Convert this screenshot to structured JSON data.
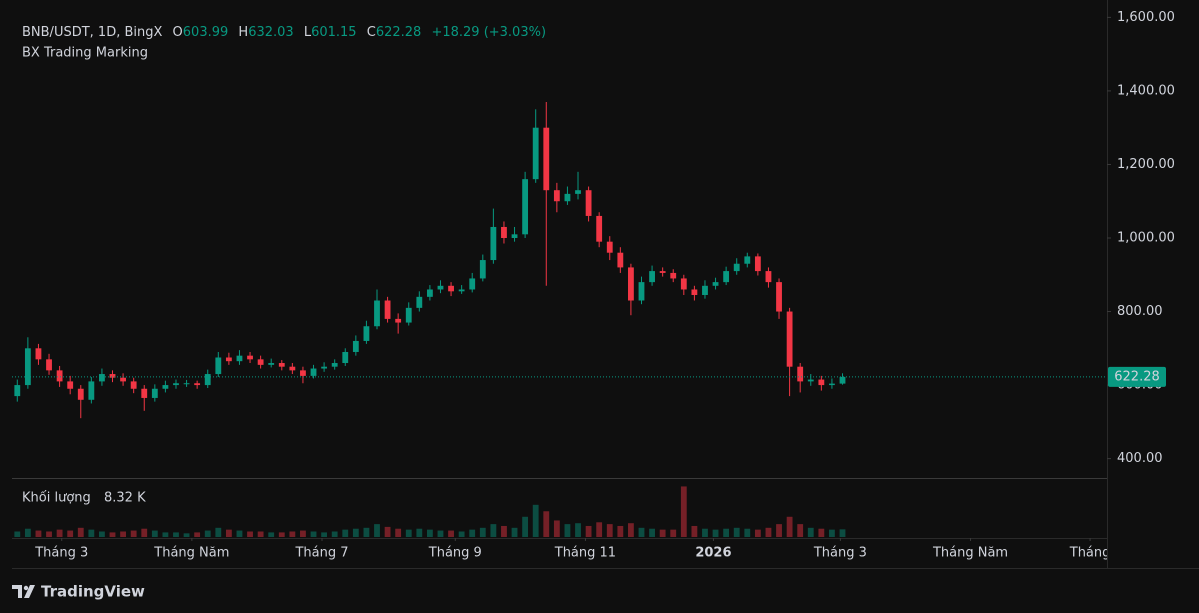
{
  "chart_data": {
    "type": "candlestick",
    "header": {
      "symbol": "BNB/USDT, 1D, BingX",
      "o": "O",
      "h": "H",
      "l": "L",
      "c": "C",
      "change": "+18.29 (+3.03%)",
      "indicator": "BX Trading Marking"
    },
    "volume_legend": {
      "label": "Khối lượng",
      "value": "8.32 K"
    },
    "brand": "TradingView",
    "up_color": "#089981",
    "down_color": "#f23645",
    "xlim": [
      -0.5,
      103
    ],
    "xticks": [
      {
        "value": 4.2,
        "label": "Tháng 3"
      },
      {
        "value": 16.5,
        "label": "Tháng Năm"
      },
      {
        "value": 28.8,
        "label": "Tháng 7"
      },
      {
        "value": 41.4,
        "label": "Tháng 9"
      },
      {
        "value": 53.7,
        "label": "Tháng 11"
      },
      {
        "value": 65.8,
        "label": "2026"
      },
      {
        "value": 77.8,
        "label": "Tháng 3"
      },
      {
        "value": 90.1,
        "label": "Tháng Năm"
      },
      {
        "value": 101.4,
        "label": "Tháng"
      }
    ],
    "ylim": [
      350,
      1650
    ],
    "yticks": [
      {
        "value": 400,
        "label": "400.00"
      },
      {
        "value": 600,
        "label": "600.00"
      },
      {
        "value": 800,
        "label": "800.00"
      },
      {
        "value": 1000,
        "label": "1,000.00"
      },
      {
        "value": 1200,
        "label": "1,200.00"
      },
      {
        "value": 1400,
        "label": "1,400.00"
      },
      {
        "value": 1600,
        "label": "1,600.00"
      }
    ],
    "volume_lim": [
      0,
      62
    ],
    "open": [
      570,
      600,
      700,
      670,
      640,
      610,
      590,
      560,
      610,
      630,
      620,
      610,
      590,
      565,
      590,
      600,
      605,
      605,
      600,
      630,
      675,
      665,
      680,
      670,
      655,
      660,
      650,
      640,
      625,
      645,
      650,
      660,
      690,
      720,
      760,
      830,
      780,
      770,
      810,
      840,
      860,
      870,
      855,
      860,
      890,
      940,
      1030,
      1000,
      1010,
      1160,
      1300,
      1130,
      1100,
      1120,
      1130,
      1060,
      990,
      960,
      920,
      830,
      880,
      910,
      905,
      890,
      860,
      845,
      870,
      880,
      910,
      930,
      950,
      910,
      880,
      800,
      650,
      610,
      615,
      600,
      603.99
    ],
    "high": [
      615,
      730,
      712,
      685,
      652,
      625,
      600,
      622,
      645,
      640,
      632,
      620,
      600,
      602,
      612,
      615,
      614,
      612,
      642,
      690,
      688,
      695,
      690,
      680,
      672,
      668,
      660,
      650,
      655,
      662,
      670,
      700,
      735,
      775,
      860,
      840,
      795,
      825,
      855,
      872,
      885,
      880,
      872,
      905,
      955,
      1080,
      1045,
      1030,
      1180,
      1350,
      1370,
      1150,
      1140,
      1180,
      1140,
      1070,
      1005,
      975,
      930,
      895,
      925,
      920,
      915,
      900,
      870,
      885,
      892,
      922,
      945,
      960,
      958,
      920,
      890,
      810,
      660,
      630,
      625,
      618,
      632.03
    ],
    "low": [
      555,
      590,
      655,
      628,
      595,
      575,
      510,
      550,
      598,
      608,
      598,
      578,
      530,
      555,
      580,
      590,
      595,
      590,
      592,
      622,
      655,
      655,
      660,
      645,
      648,
      640,
      630,
      605,
      618,
      636,
      642,
      652,
      680,
      712,
      752,
      770,
      740,
      762,
      800,
      830,
      850,
      842,
      848,
      852,
      882,
      930,
      985,
      990,
      1000,
      1150,
      870,
      1070,
      1090,
      1105,
      1045,
      975,
      940,
      905,
      790,
      820,
      870,
      895,
      880,
      845,
      830,
      835,
      860,
      872,
      900,
      920,
      898,
      865,
      780,
      570,
      580,
      598,
      585,
      590,
      601.15
    ],
    "close": [
      600,
      700,
      670,
      640,
      610,
      590,
      560,
      610,
      630,
      620,
      610,
      590,
      565,
      590,
      600,
      605,
      605,
      600,
      630,
      675,
      665,
      680,
      670,
      655,
      660,
      650,
      640,
      625,
      645,
      650,
      660,
      690,
      720,
      760,
      830,
      780,
      770,
      810,
      840,
      860,
      870,
      855,
      860,
      890,
      940,
      1030,
      1000,
      1010,
      1160,
      1300,
      1130,
      1100,
      1120,
      1130,
      1060,
      990,
      960,
      920,
      830,
      880,
      910,
      905,
      890,
      860,
      845,
      870,
      880,
      910,
      930,
      950,
      910,
      880,
      800,
      650,
      610,
      615,
      600,
      604,
      622.28
    ],
    "volume": [
      6,
      9,
      7,
      6,
      8,
      7,
      10,
      8,
      6,
      5,
      6,
      7,
      9,
      7,
      5,
      5,
      4,
      5,
      7,
      10,
      8,
      7,
      6,
      6,
      5,
      5,
      6,
      7,
      6,
      5,
      6,
      8,
      9,
      10,
      14,
      11,
      9,
      8,
      9,
      8,
      7,
      7,
      6,
      8,
      10,
      14,
      12,
      10,
      22,
      35,
      28,
      18,
      14,
      15,
      12,
      16,
      14,
      12,
      15,
      10,
      9,
      8,
      8,
      55,
      12,
      9,
      8,
      9,
      10,
      9,
      8,
      10,
      14,
      22,
      14,
      10,
      9,
      8,
      8.32
    ]
  }
}
